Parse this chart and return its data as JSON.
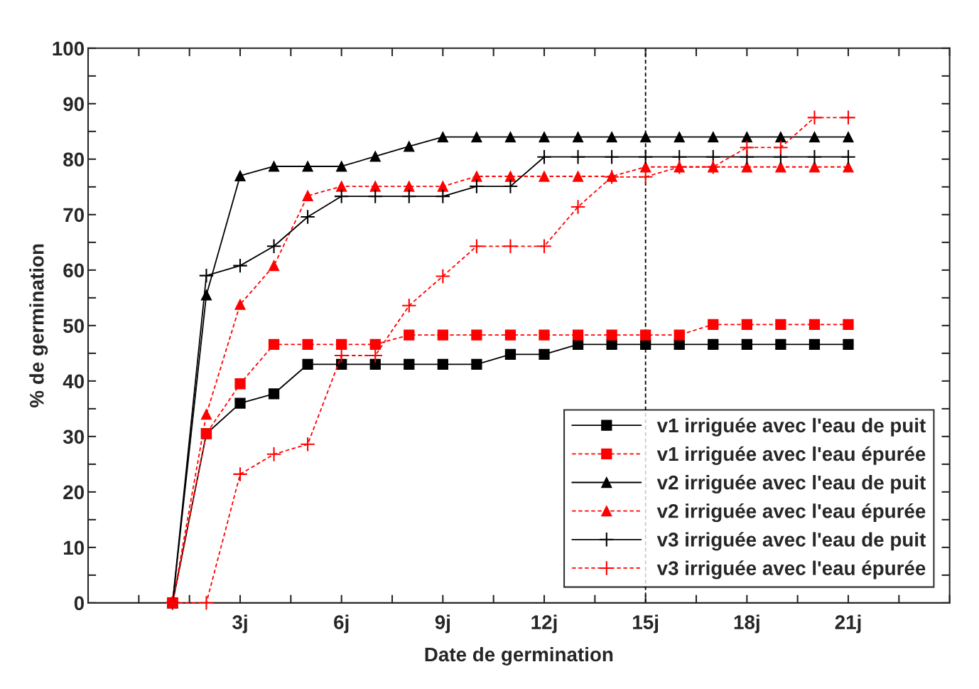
{
  "chart_data": {
    "type": "line",
    "xlabel": "Date de germination",
    "ylabel": "% de germination",
    "x": [
      1,
      2,
      3,
      4,
      5,
      6,
      7,
      8,
      9,
      10,
      11,
      12,
      13,
      14,
      15,
      16,
      17,
      18,
      19,
      20,
      21
    ],
    "xlim": [
      -1.5,
      24
    ],
    "xticks": [
      {
        "value": -1.5,
        "label": null
      },
      {
        "value": 0,
        "label": null
      },
      {
        "value": 1.5,
        "label": null
      },
      {
        "value": 3,
        "label": "3j"
      },
      {
        "value": 4.5,
        "label": null
      },
      {
        "value": 6,
        "label": "6j"
      },
      {
        "value": 7.5,
        "label": null
      },
      {
        "value": 9,
        "label": "9j"
      },
      {
        "value": 10.5,
        "label": null
      },
      {
        "value": 12,
        "label": "12j"
      },
      {
        "value": 13.5,
        "label": null
      },
      {
        "value": 15,
        "label": "15j"
      },
      {
        "value": 16.5,
        "label": null
      },
      {
        "value": 18,
        "label": "18j"
      },
      {
        "value": 19.5,
        "label": null
      },
      {
        "value": 21,
        "label": "21j"
      },
      {
        "value": 22.5,
        "label": null
      },
      {
        "value": 24,
        "label": null
      }
    ],
    "ylim": [
      0,
      100
    ],
    "yticks": [
      0,
      {
        "value": 5,
        "label": null
      },
      10,
      {
        "value": 15,
        "label": null
      },
      20,
      {
        "value": 25,
        "label": null
      },
      30,
      {
        "value": 35,
        "label": null
      },
      40,
      {
        "value": 45,
        "label": null
      },
      50,
      {
        "value": 55,
        "label": null
      },
      60,
      {
        "value": 65,
        "label": null
      },
      70,
      {
        "value": 75,
        "label": null
      },
      80,
      {
        "value": 85,
        "label": null
      },
      90,
      {
        "value": 95,
        "label": null
      },
      100
    ],
    "grid": false,
    "legend": "bottom right",
    "ref_lines": [
      {
        "axis": "x",
        "value": 15,
        "color": "#000000",
        "line_style": "dashed"
      }
    ],
    "series": [
      {
        "name": "v1 irriguée avec l'eau de puit",
        "color": "#000000",
        "marker": "square",
        "line_style": "solid",
        "values": [
          0,
          30.5,
          36,
          37.7,
          43,
          43,
          43,
          43,
          43,
          43,
          44.8,
          44.8,
          46.6,
          46.6,
          46.6,
          46.6,
          46.6,
          46.6,
          46.6,
          46.6,
          46.6
        ]
      },
      {
        "name": "v1 irriguée avec l'eau épurée",
        "color": "#ff0000",
        "marker": "square",
        "line_style": "dashed",
        "values": [
          0,
          30.5,
          39.5,
          46.6,
          46.6,
          46.6,
          46.6,
          48.3,
          48.3,
          48.3,
          48.3,
          48.3,
          48.3,
          48.3,
          48.3,
          48.3,
          50.2,
          50.2,
          50.2,
          50.2,
          50.2
        ]
      },
      {
        "name": "v2 irriguée avec l'eau de puit",
        "color": "#000000",
        "marker": "triangle",
        "line_style": "solid",
        "values": [
          0,
          55.5,
          77,
          78.7,
          78.7,
          78.7,
          80.5,
          82.3,
          84,
          84,
          84,
          84,
          84,
          84,
          84,
          84,
          84,
          84,
          84,
          84,
          84
        ]
      },
      {
        "name": "v2 irriguée avec l'eau épurée",
        "color": "#ff0000",
        "marker": "triangle",
        "line_style": "dashed",
        "values": [
          0,
          34,
          53.8,
          60.8,
          73.4,
          75.1,
          75.1,
          75.1,
          75.1,
          76.9,
          76.9,
          76.9,
          76.9,
          76.9,
          78.6,
          78.6,
          78.6,
          78.6,
          78.6,
          78.6,
          78.6
        ]
      },
      {
        "name": "v3 irriguée avec l'eau de puit",
        "color": "#000000",
        "marker": "cross",
        "line_style": "solid",
        "values": [
          0,
          59,
          60.8,
          64.3,
          69.6,
          73.3,
          73.3,
          73.3,
          73.3,
          75.1,
          75.1,
          80.4,
          80.4,
          80.4,
          80.4,
          80.4,
          80.4,
          80.4,
          80.4,
          80.4,
          80.4
        ]
      },
      {
        "name": "v3 irriguée avec l'eau épurée",
        "color": "#ff0000",
        "marker": "cross",
        "line_style": "dashed",
        "values": [
          0,
          0,
          23.2,
          26.8,
          28.6,
          44.6,
          44.6,
          53.6,
          58.9,
          64.3,
          64.3,
          64.3,
          71.4,
          76.8,
          76.8,
          78.6,
          78.6,
          82.1,
          82.1,
          87.5,
          87.5
        ]
      }
    ]
  }
}
